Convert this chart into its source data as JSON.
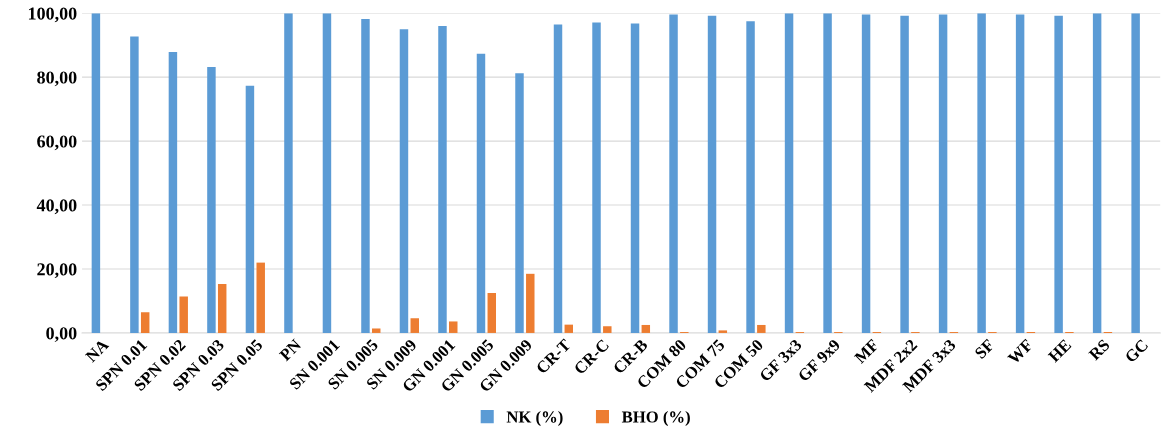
{
  "chart_data": {
    "type": "bar",
    "categories": [
      "NA",
      "SPN 0.01",
      "SPN 0.02",
      "SPN 0.03",
      "SPN 0.05",
      "PN",
      "SN 0.001",
      "SN 0.005",
      "SN 0.009",
      "GN 0.001",
      "GN 0.005",
      "GN 0.009",
      "CR-T",
      "CR-C",
      "CR-B",
      "COM 80",
      "COM 75",
      "COM 50",
      "GF 3x3",
      "GF 9x9",
      "MF",
      "MDF 2x2",
      "MDF 3x3",
      "SF",
      "WF",
      "HE",
      "RS",
      "GC"
    ],
    "series": [
      {
        "name": "NK (%)",
        "color": "#5b9bd5",
        "values": [
          100,
          92.7,
          87.9,
          83.2,
          77.3,
          100,
          100,
          98.2,
          95,
          96,
          87.3,
          81.2,
          96.5,
          97.1,
          96.8,
          99.6,
          99.2,
          97.5,
          100,
          100,
          99.6,
          99.2,
          99.6,
          100,
          99.6,
          99.2,
          100,
          100
        ]
      },
      {
        "name": "BHO (%)",
        "color": "#ed7d31",
        "values": [
          0,
          6.5,
          11.4,
          15.3,
          22,
          0,
          0,
          1.4,
          4.6,
          3.6,
          12.5,
          18.5,
          2.6,
          2.1,
          2.5,
          0.3,
          0.8,
          2.5,
          0.3,
          0.3,
          0.3,
          0.3,
          0.3,
          0.3,
          0.3,
          0.3,
          0.3,
          0
        ]
      }
    ],
    "ylim": [
      0,
      100
    ],
    "yticks": [
      {
        "value": 0,
        "label": "0,00"
      },
      {
        "value": 20,
        "label": "20,00"
      },
      {
        "value": 40,
        "label": "40,00"
      },
      {
        "value": 60,
        "label": "60,00"
      },
      {
        "value": 80,
        "label": "80,00"
      },
      {
        "value": 100,
        "label": "100,00"
      }
    ],
    "grid": "y",
    "legend": "bottom"
  }
}
